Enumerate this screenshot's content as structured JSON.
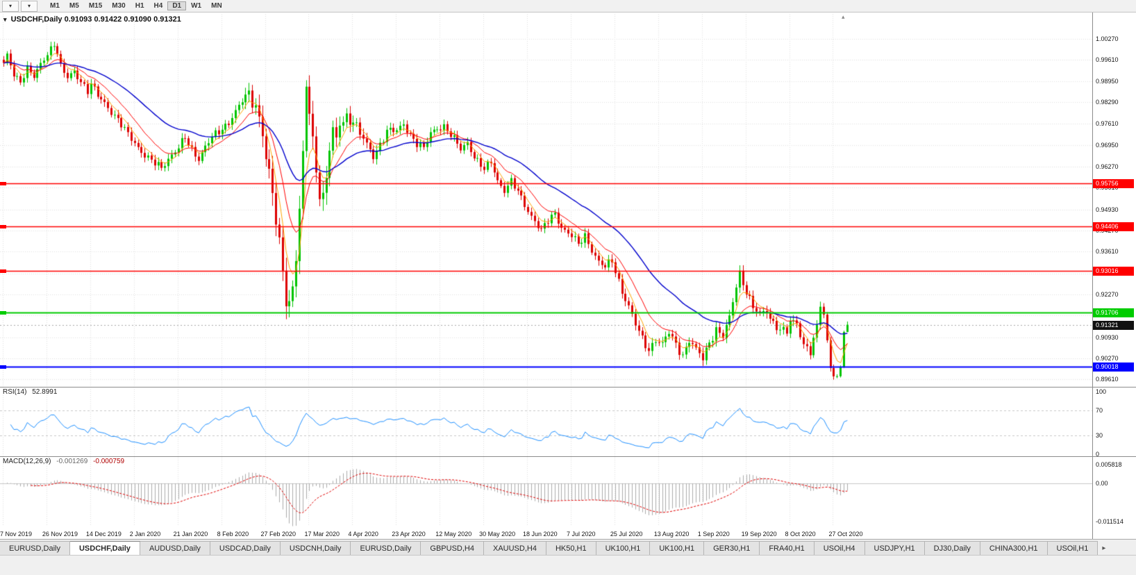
{
  "glyphs": {
    "caret": "▾",
    "arrow_right": "▸",
    "marker_up": "▴"
  },
  "toolbar": {
    "timeframes": [
      "M1",
      "M5",
      "M15",
      "M30",
      "H1",
      "H4",
      "D1",
      "W1",
      "MN"
    ],
    "active_timeframe": "D1"
  },
  "chart": {
    "symbol": "USDCHF,Daily",
    "quote_text": "0.91093 0.91422 0.91090 0.91321"
  },
  "rsi_pane": {
    "label": "RSI(14)",
    "value": "52.8991",
    "ticks": [
      {
        "label": "100",
        "value": 100
      },
      {
        "label": "70",
        "value": 70
      },
      {
        "label": "30",
        "value": 30
      },
      {
        "label": "0",
        "value": 0
      }
    ],
    "level_lines": [
      70,
      30
    ]
  },
  "macd_pane": {
    "label": "MACD(12,26,9)",
    "value_main": "-0.001269",
    "value_signal": "-0.000759",
    "ticks": [
      {
        "label": "0.005818",
        "value": 0.005818
      },
      {
        "label": "0.00",
        "value": 0
      },
      {
        "label": "-0.011514",
        "value": -0.011514
      }
    ]
  },
  "price_axis": {
    "ticks": [
      {
        "label": "1.00270",
        "value": 1.0027
      },
      {
        "label": "0.99610",
        "value": 0.9961
      },
      {
        "label": "0.98950",
        "value": 0.9895
      },
      {
        "label": "0.98290",
        "value": 0.9829
      },
      {
        "label": "0.97610",
        "value": 0.9761
      },
      {
        "label": "0.96950",
        "value": 0.9695
      },
      {
        "label": "0.96270",
        "value": 0.9627
      },
      {
        "label": "0.95610",
        "value": 0.9561
      },
      {
        "label": "0.94930",
        "value": 0.9493
      },
      {
        "label": "0.94270",
        "value": 0.9427
      },
      {
        "label": "0.93610",
        "value": 0.9361
      },
      {
        "label": "0.92930",
        "value": 0.9293
      },
      {
        "label": "0.92270",
        "value": 0.9227
      },
      {
        "label": "0.91610",
        "value": 0.9161
      },
      {
        "label": "0.90930",
        "value": 0.9093
      },
      {
        "label": "0.90270",
        "value": 0.9027
      },
      {
        "label": "0.89610",
        "value": 0.8961
      }
    ]
  },
  "date_axis": {
    "tick_interval_bars": 13,
    "labels": [
      "7 Nov 2019",
      "26 Nov 2019",
      "14 Dec 2019",
      "2 Jan 2020",
      "21 Jan 2020",
      "8 Feb 2020",
      "27 Feb 2020",
      "17 Mar 2020",
      "4 Apr 2020",
      "23 Apr 2020",
      "12 May 2020",
      "30 May 2020",
      "18 Jun 2020",
      "7 Jul 2020",
      "25 Jul 2020",
      "13 Aug 2020",
      "1 Sep 2020",
      "19 Sep 2020",
      "8 Oct 2020",
      "27 Oct 2020"
    ]
  },
  "current_price_tag": {
    "label": "0.91321",
    "bg": "#111111"
  },
  "tabs": [
    {
      "label": "EURUSD,Daily",
      "active": false
    },
    {
      "label": "USDCHF,Daily",
      "active": true
    },
    {
      "label": "AUDUSD,Daily",
      "active": false
    },
    {
      "label": "USDCAD,Daily",
      "active": false
    },
    {
      "label": "USDCNH,Daily",
      "active": false
    },
    {
      "label": "EURUSD,Daily",
      "active": false
    },
    {
      "label": "GBPUSD,H4",
      "active": false
    },
    {
      "label": "XAUUSD,H4",
      "active": false
    },
    {
      "label": "HK50,H1",
      "active": false
    },
    {
      "label": "UK100,H1",
      "active": false
    },
    {
      "label": "UK100,H1",
      "active": false
    },
    {
      "label": "GER30,H1",
      "active": false
    },
    {
      "label": "FRA40,H1",
      "active": false
    },
    {
      "label": "USOil,H4",
      "active": false
    },
    {
      "label": "USDJPY,H1",
      "active": false
    },
    {
      "label": "DJ30,Daily",
      "active": false
    },
    {
      "label": "CHINA300,H1",
      "active": false
    },
    {
      "label": "USOil,H1",
      "active": false
    }
  ],
  "colors": {
    "up": "#00C400",
    "down": "#DD0000",
    "grid": "#E0E0E0",
    "rsi_line": "#1E90FF",
    "macd_hist": "#ABABAB",
    "macd_signal": "#E00000",
    "current_price_line": "#A8A8A8"
  },
  "chart_data": {
    "type": "candlestick",
    "symbol": "USDCHF",
    "period": "Daily",
    "quote": {
      "open": 0.91093,
      "high": 0.91422,
      "low": 0.9109,
      "close": 0.91321
    },
    "bars": 252,
    "price_range": [
      0.894,
      1.0105
    ],
    "levels": [
      {
        "price": 0.95756,
        "label": "0.95756",
        "color": "#FF0000",
        "width": 1.4
      },
      {
        "price": 0.94406,
        "label": "0.94406",
        "color": "#FF0000",
        "width": 1.4
      },
      {
        "price": 0.93016,
        "label": "0.93016",
        "color": "#FF0000",
        "width": 1.4
      },
      {
        "price": 0.91706,
        "label": "0.91706",
        "color": "#00CC00",
        "width": 2
      },
      {
        "price": 0.90018,
        "label": "0.90018",
        "color": "#0000FF",
        "width": 2
      }
    ],
    "moving_averages": [
      {
        "period": 5,
        "type": "ema",
        "color": "#FFA500"
      },
      {
        "period": 12,
        "type": "ema",
        "color": "#FF0000"
      },
      {
        "period": 34,
        "type": "ema",
        "color": "#0000CD"
      }
    ],
    "indicators": [
      {
        "name": "RSI",
        "period": 14,
        "last": 52.8991,
        "levels": [
          70,
          30
        ],
        "range": [
          0,
          100
        ]
      },
      {
        "name": "MACD",
        "fast": 12,
        "slow": 26,
        "signal": 9,
        "last_main": -0.001269,
        "last_signal": -0.000759
      }
    ],
    "close_anchors": [
      [
        0,
        0.9945
      ],
      [
        1,
        0.9975
      ],
      [
        3,
        0.992
      ],
      [
        5,
        0.9895
      ],
      [
        7,
        0.993
      ],
      [
        9,
        0.9905
      ],
      [
        11,
        0.995
      ],
      [
        13,
        0.9985
      ],
      [
        15,
        1.001
      ],
      [
        16,
        0.998
      ],
      [
        17,
        0.9935
      ],
      [
        19,
        0.9905
      ],
      [
        21,
        0.993
      ],
      [
        23,
        0.9895
      ],
      [
        25,
        0.986
      ],
      [
        26,
        0.988
      ],
      [
        28,
        0.985
      ],
      [
        30,
        0.983
      ],
      [
        32,
        0.98
      ],
      [
        34,
        0.977
      ],
      [
        36,
        0.974
      ],
      [
        39,
        0.9705
      ],
      [
        41,
        0.9675
      ],
      [
        43,
        0.965
      ],
      [
        45,
        0.9635
      ],
      [
        47,
        0.9625
      ],
      [
        49,
        0.9655
      ],
      [
        52,
        0.9685
      ],
      [
        54,
        0.9715
      ],
      [
        56,
        0.968
      ],
      [
        58,
        0.9655
      ],
      [
        60,
        0.969
      ],
      [
        62,
        0.9715
      ],
      [
        65,
        0.9745
      ],
      [
        67,
        0.977
      ],
      [
        69,
        0.98
      ],
      [
        71,
        0.983
      ],
      [
        73,
        0.985
      ],
      [
        75,
        0.982
      ],
      [
        77,
        0.975
      ],
      [
        78,
        0.965
      ],
      [
        79,
        0.96
      ],
      [
        80,
        0.953
      ],
      [
        81,
        0.945
      ],
      [
        82,
        0.938
      ],
      [
        83,
        0.93
      ],
      [
        84,
        0.923
      ],
      [
        85,
        0.92
      ],
      [
        86,
        0.926
      ],
      [
        87,
        0.935
      ],
      [
        88,
        0.948
      ],
      [
        89,
        0.965
      ],
      [
        90,
        0.987
      ],
      [
        91,
        0.98
      ],
      [
        92,
        0.97
      ],
      [
        93,
        0.963
      ],
      [
        94,
        0.956
      ],
      [
        95,
        0.953
      ],
      [
        96,
        0.96
      ],
      [
        97,
        0.968
      ],
      [
        98,
        0.973
      ],
      [
        99,
        0.97
      ],
      [
        100,
        0.976
      ],
      [
        102,
        0.9785
      ],
      [
        104,
        0.9775
      ],
      [
        106,
        0.973
      ],
      [
        108,
        0.969
      ],
      [
        110,
        0.966
      ],
      [
        112,
        0.97
      ],
      [
        114,
        0.974
      ],
      [
        117,
        0.9735
      ],
      [
        119,
        0.976
      ],
      [
        121,
        0.973
      ],
      [
        123,
        0.97
      ],
      [
        125,
        0.968
      ],
      [
        127,
        0.973
      ],
      [
        129,
        0.975
      ],
      [
        131,
        0.9755
      ],
      [
        134,
        0.971
      ],
      [
        136,
        0.968
      ],
      [
        138,
        0.9705
      ],
      [
        140,
        0.966
      ],
      [
        143,
        0.9615
      ],
      [
        145,
        0.964
      ],
      [
        147,
        0.9585
      ],
      [
        149,
        0.9555
      ],
      [
        151,
        0.958
      ],
      [
        153,
        0.9545
      ],
      [
        156,
        0.949
      ],
      [
        158,
        0.946
      ],
      [
        160,
        0.9425
      ],
      [
        162,
        0.9455
      ],
      [
        164,
        0.948
      ],
      [
        166,
        0.944
      ],
      [
        169,
        0.941
      ],
      [
        171,
        0.938
      ],
      [
        173,
        0.941
      ],
      [
        175,
        0.937
      ],
      [
        177,
        0.933
      ],
      [
        179,
        0.931
      ],
      [
        181,
        0.933
      ],
      [
        182,
        0.93
      ],
      [
        184,
        0.924
      ],
      [
        186,
        0.919
      ],
      [
        188,
        0.913
      ],
      [
        190,
        0.9085
      ],
      [
        192,
        0.9055
      ],
      [
        194,
        0.909
      ],
      [
        196,
        0.907
      ],
      [
        198,
        0.9105
      ],
      [
        200,
        0.907
      ],
      [
        202,
        0.904
      ],
      [
        204,
        0.9085
      ],
      [
        206,
        0.905
      ],
      [
        208,
        0.9025
      ],
      [
        210,
        0.908
      ],
      [
        212,
        0.912
      ],
      [
        214,
        0.9095
      ],
      [
        216,
        0.915
      ],
      [
        218,
        0.9255
      ],
      [
        219,
        0.9295
      ],
      [
        221,
        0.924
      ],
      [
        223,
        0.9185
      ],
      [
        225,
        0.916
      ],
      [
        227,
        0.9175
      ],
      [
        229,
        0.914
      ],
      [
        231,
        0.912
      ],
      [
        233,
        0.9105
      ],
      [
        234,
        0.914
      ],
      [
        236,
        0.9135
      ],
      [
        238,
        0.9075
      ],
      [
        240,
        0.905
      ],
      [
        242,
        0.912
      ],
      [
        243,
        0.919
      ],
      [
        244,
        0.916
      ],
      [
        245,
        0.908
      ],
      [
        246,
        0.9
      ],
      [
        247,
        0.898
      ],
      [
        248,
        0.897
      ],
      [
        249,
        0.9
      ],
      [
        250,
        0.91093
      ],
      [
        251,
        0.91321
      ]
    ],
    "volatility_anchors": [
      [
        0,
        0.0016
      ],
      [
        70,
        0.0018
      ],
      [
        78,
        0.0045
      ],
      [
        95,
        0.0045
      ],
      [
        102,
        0.0028
      ],
      [
        112,
        0.0018
      ],
      [
        150,
        0.0016
      ],
      [
        180,
        0.0018
      ],
      [
        216,
        0.002
      ],
      [
        243,
        0.0018
      ],
      [
        247,
        0.0012
      ],
      [
        250,
        0.0005
      ],
      [
        251,
        0.0004
      ]
    ]
  }
}
